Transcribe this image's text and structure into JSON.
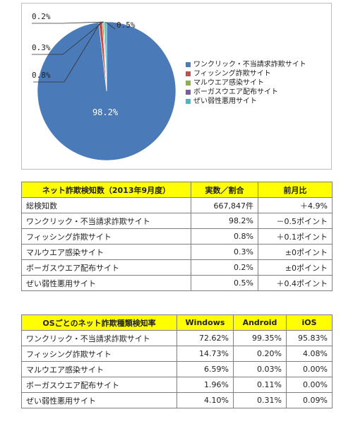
{
  "chart_data": {
    "type": "pie",
    "categories": [
      "ワンクリック・不当請求詐欺サイト",
      "フィッシング詐欺サイト",
      "マルウエア感染サイト",
      "ボーガスウエア配布サイト",
      "ぜい弱性悪用サイト"
    ],
    "values": [
      98.2,
      0.8,
      0.3,
      0.2,
      0.5
    ],
    "labels": [
      "98.2%",
      "0.8%",
      "0.3%",
      "0.2%",
      "0.5%"
    ],
    "colors": [
      "#4a7ab8",
      "#c0504d",
      "#8db04f",
      "#7a5a9c",
      "#4ab5c4"
    ],
    "legend_position": "right"
  },
  "table1": {
    "headers": [
      "ネット詐欺検知数（2013年9月度）",
      "実数／割合",
      "前月比"
    ],
    "rows": [
      [
        "総検知数",
        "667,847件",
        "＋4.9%"
      ],
      [
        "ワンクリック・不当請求詐欺サイト",
        "98.2%",
        "－0.5ポイント"
      ],
      [
        "フィッシング詐欺サイト",
        "0.8%",
        "＋0.1ポイント"
      ],
      [
        "マルウエア感染サイト",
        "0.3%",
        "±0ポイント"
      ],
      [
        "ボーガスウエア配布サイト",
        "0.2%",
        "±0ポイント"
      ],
      [
        "ぜい弱性悪用サイト",
        "0.5%",
        "＋0.4ポイント"
      ]
    ]
  },
  "table2": {
    "headers": [
      "OSごとのネット詐欺種類検知率",
      "Windows",
      "Android",
      "iOS"
    ],
    "rows": [
      [
        "ワンクリック・不当請求詐欺サイト",
        "72.62%",
        "99.35%",
        "95.83%"
      ],
      [
        "フィッシング詐欺サイト",
        "14.73%",
        "0.20%",
        "4.08%"
      ],
      [
        "マルウエア感染サイト",
        "6.59%",
        "0.03%",
        "0.00%"
      ],
      [
        "ボーガスウエア配布サイト",
        "1.96%",
        "0.11%",
        "0.00%"
      ],
      [
        "ぜい弱性悪用サイト",
        "4.10%",
        "0.31%",
        "0.09%"
      ]
    ]
  }
}
